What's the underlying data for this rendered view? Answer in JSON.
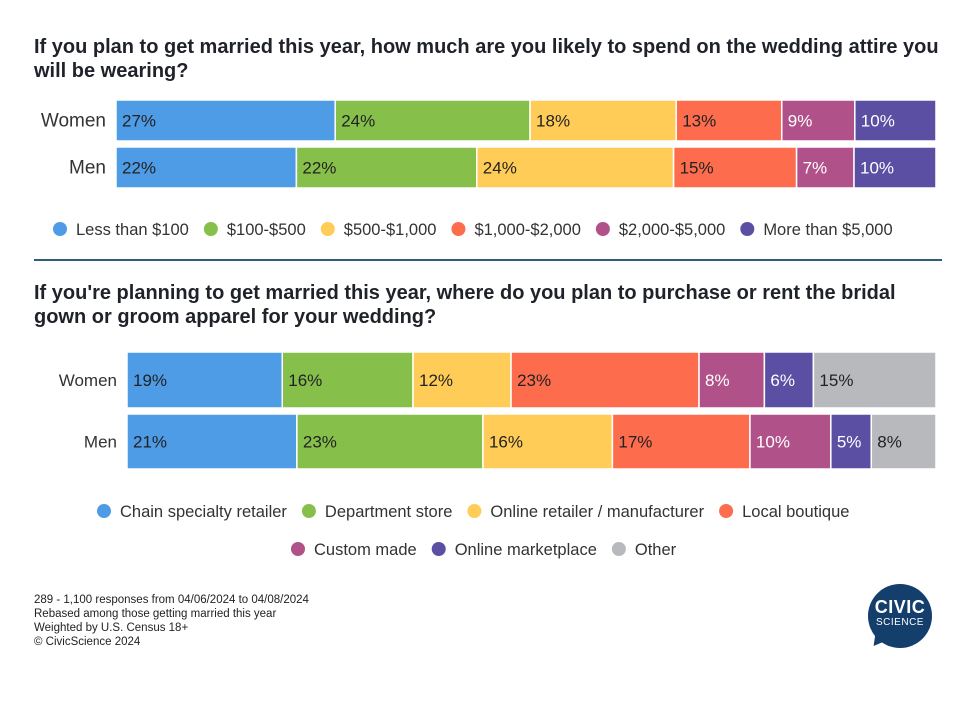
{
  "chart_data": [
    {
      "type": "bar",
      "orientation": "horizontal",
      "stacked": true,
      "title": "If you plan to get married this year, how much are you likely to spend on the wedding attire you will be wearing?",
      "categories": [
        "Women",
        "Men"
      ],
      "series": [
        {
          "name": "Less than $100",
          "color": "#4e9be6",
          "values": [
            27,
            22
          ]
        },
        {
          "name": "$100-$500",
          "color": "#86c04b",
          "values": [
            24,
            22
          ]
        },
        {
          "name": "$500-$1,000",
          "color": "#ffcd57",
          "values": [
            18,
            24
          ]
        },
        {
          "name": "$1,000-$2,000",
          "color": "#fd6c4d",
          "values": [
            13,
            15
          ]
        },
        {
          "name": "$2,000-$5,000",
          "color": "#b05289",
          "values": [
            9,
            7
          ]
        },
        {
          "name": "More than $5,000",
          "color": "#5b4fa3",
          "values": [
            10,
            10
          ]
        }
      ],
      "value_suffix": "%",
      "legend_position": "bottom"
    },
    {
      "type": "bar",
      "orientation": "horizontal",
      "stacked": true,
      "title": "If you're planning to get married this year, where do you plan to purchase or rent the bridal gown or groom apparel for your wedding?",
      "categories": [
        "Women",
        "Men"
      ],
      "series": [
        {
          "name": "Chain specialty retailer",
          "color": "#4e9be6",
          "values": [
            19,
            21
          ]
        },
        {
          "name": "Department store",
          "color": "#86c04b",
          "values": [
            16,
            23
          ]
        },
        {
          "name": "Online retailer / manufacturer",
          "color": "#ffcd57",
          "values": [
            12,
            16
          ]
        },
        {
          "name": "Local boutique",
          "color": "#fd6c4d",
          "values": [
            23,
            17
          ]
        },
        {
          "name": "Custom made",
          "color": "#b05289",
          "values": [
            8,
            10
          ]
        },
        {
          "name": "Online marketplace",
          "color": "#5b4fa3",
          "values": [
            6,
            5
          ]
        },
        {
          "name": "Other",
          "color": "#b7b9bd",
          "values": [
            15,
            8
          ]
        }
      ],
      "value_suffix": "%",
      "legend_position": "bottom"
    }
  ],
  "footnotes": [
    "289 - 1,100  responses from 04/06/2024 to 04/08/2024",
    "Rebased among those getting married this year",
    "Weighted by U.S. Census 18+",
    "© CivicScience 2024"
  ],
  "logo": {
    "line1": "CIVIC",
    "line2": "SCIENCE"
  }
}
